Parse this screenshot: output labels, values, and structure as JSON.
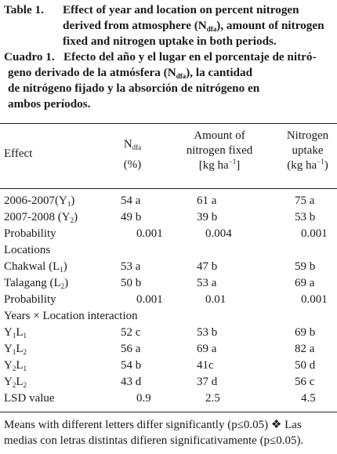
{
  "caption_en": {
    "label": "Table 1.",
    "line1": "Effect of year and location on percent nitrogen",
    "line2_pre": "derived from atmosphere (N",
    "line2_sub": "dfa",
    "line2_post": "), amount of nitrogen",
    "line3": "fixed and nitrogen uptake in both periods."
  },
  "caption_es": {
    "label": "Cuadro 1.",
    "line1": "Efecto del año y el lugar en el porcentaje de nitró-",
    "line2_pre": "geno derivado de la atmósfera (N",
    "line2_sub": "dfa",
    "line2_post": "), la cantidad",
    "line3": "de nitrógeno fijado y la absorción de nitrógeno en",
    "line4": "ambos períodos."
  },
  "header": {
    "effect": "Effect",
    "ndfa_main": "N",
    "ndfa_sub": "dfa",
    "ndfa_unit": "(%)",
    "fixed_l1": "Amount of",
    "fixed_l2": "nitrogen fixed",
    "fixed_unit_pre": "[kg ha",
    "fixed_unit_sup": "−1",
    "fixed_unit_post": "]",
    "uptake_l1": "Nitrogen",
    "uptake_l2": "uptake",
    "uptake_unit_pre": "(kg ha",
    "uptake_unit_sup": "−1",
    "uptake_unit_post": ")"
  },
  "rows": {
    "r1": {
      "label_pre": "2006-2007(Y",
      "label_sub": "1",
      "label_post": ")",
      "ndfa": "54 a",
      "fixed": "61 a",
      "uptake": "75 a"
    },
    "r2": {
      "label_pre": "2007-2008 (Y",
      "label_sub": "2",
      "label_post": ")",
      "ndfa": "49 b",
      "fixed": "39 b",
      "uptake": "53 b"
    },
    "r3": {
      "label": "Probability",
      "ndfa": "0.001",
      "fixed": "0.004",
      "uptake": "0.001"
    },
    "r4": {
      "label": "Locations"
    },
    "r5": {
      "label_pre": "Chakwal (L",
      "label_sub": "1",
      "label_post": ")",
      "ndfa": "53 a",
      "fixed": "47 b",
      "uptake": "59 b"
    },
    "r6": {
      "label_pre": "Talagang (L",
      "label_sub": "2",
      "label_post": ")",
      "ndfa": "50 b",
      "fixed": "53 a",
      "uptake": "69 a"
    },
    "r7": {
      "label": "Probability",
      "ndfa": "0.001",
      "fixed": "0.01",
      "uptake": "0.001"
    },
    "r8": {
      "label": "Years × Location interaction"
    },
    "r9": {
      "y": "Y",
      "ys": "1",
      "l": "L",
      "ls": "1",
      "ndfa": "52 c",
      "fixed": "53 b",
      "uptake": "69 b"
    },
    "r10": {
      "y": "Y",
      "ys": "1",
      "l": "L",
      "ls": "2",
      "ndfa": "56 a",
      "fixed": "69 a",
      "uptake": "82 a"
    },
    "r11": {
      "y": "Y",
      "ys": "2",
      "l": "L",
      "ls": "1",
      "ndfa": "54 b",
      "fixed": "41c",
      "uptake": "50 d"
    },
    "r12": {
      "y": "Y",
      "ys": "2",
      "l": "L",
      "ls": "2",
      "ndfa": "43 d",
      "fixed": "37 d",
      "uptake": "56 c"
    },
    "r13": {
      "label": "LSD value",
      "ndfa": "0.9",
      "fixed": "2.5",
      "uptake": "4.5"
    }
  },
  "footnote": {
    "line1": "Means with different letters differ significantly (p≤0.05) ❖ Las",
    "line2": "medias con letras distintas difieren significativamente (p≤0.05)."
  }
}
